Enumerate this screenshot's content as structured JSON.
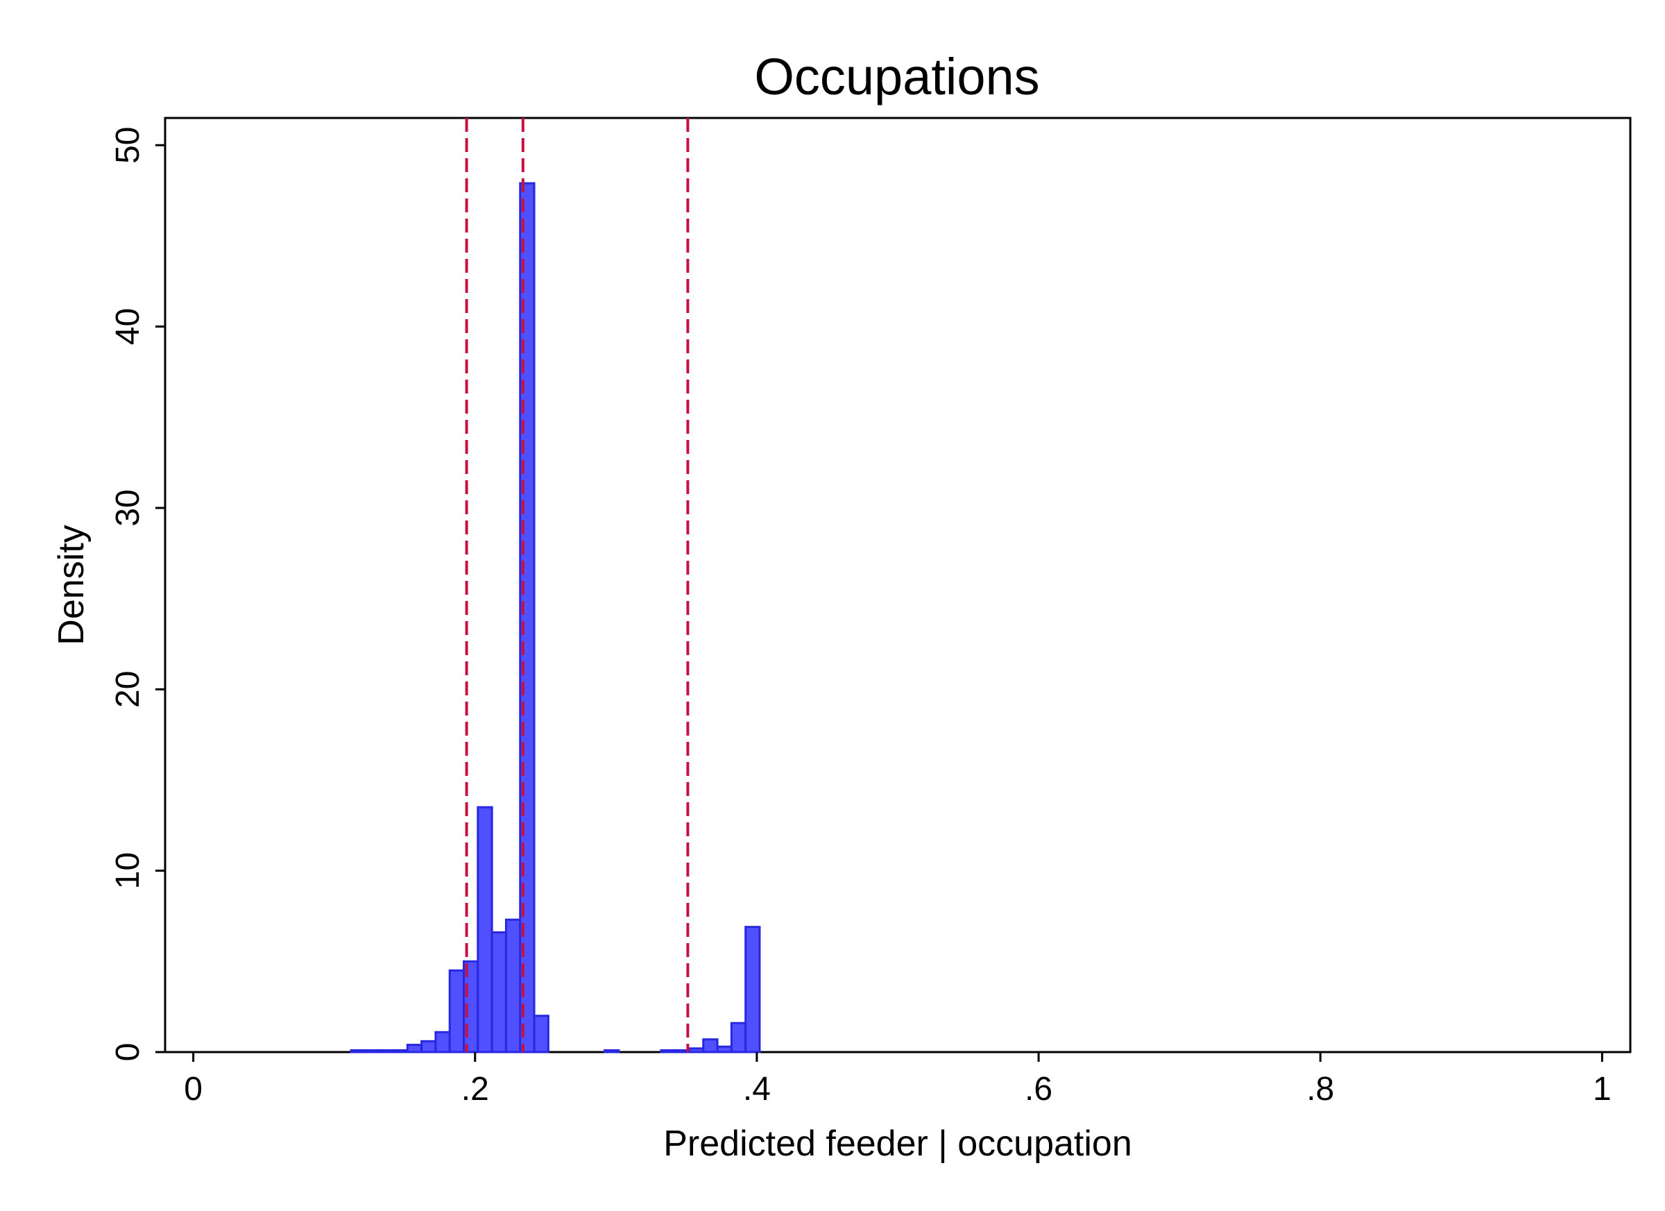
{
  "chart_data": {
    "type": "bar",
    "title": "Occupations",
    "xlabel": "Predicted feeder | occupation",
    "ylabel": "Density",
    "xlim": [
      -0.02,
      1.02
    ],
    "ylim": [
      0,
      51.5
    ],
    "x_ticks": [
      0,
      0.2,
      0.4,
      0.6,
      0.8,
      1
    ],
    "x_tick_labels": [
      "0",
      ".2",
      ".4",
      ".6",
      ".8",
      "1"
    ],
    "y_ticks": [
      0,
      10,
      20,
      30,
      40,
      50
    ],
    "y_tick_labels": [
      "0",
      "10",
      "20",
      "30",
      "40",
      "50"
    ],
    "grid": false,
    "bin_width": 0.01,
    "bins": [
      {
        "start": 0.112,
        "density": 0.1
      },
      {
        "start": 0.122,
        "density": 0.1
      },
      {
        "start": 0.132,
        "density": 0.1
      },
      {
        "start": 0.142,
        "density": 0.1
      },
      {
        "start": 0.152,
        "density": 0.4
      },
      {
        "start": 0.162,
        "density": 0.6
      },
      {
        "start": 0.172,
        "density": 1.1
      },
      {
        "start": 0.182,
        "density": 4.5
      },
      {
        "start": 0.192,
        "density": 5.0
      },
      {
        "start": 0.202,
        "density": 13.5
      },
      {
        "start": 0.212,
        "density": 6.6
      },
      {
        "start": 0.222,
        "density": 7.3
      },
      {
        "start": 0.232,
        "density": 47.9
      },
      {
        "start": 0.242,
        "density": 2.0
      },
      {
        "start": 0.292,
        "density": 0.1
      },
      {
        "start": 0.332,
        "density": 0.1
      },
      {
        "start": 0.342,
        "density": 0.1
      },
      {
        "start": 0.352,
        "density": 0.2
      },
      {
        "start": 0.362,
        "density": 0.7
      },
      {
        "start": 0.372,
        "density": 0.3
      },
      {
        "start": 0.382,
        "density": 1.6
      },
      {
        "start": 0.392,
        "density": 6.9
      }
    ],
    "vlines": [
      0.194,
      0.234,
      0.351
    ],
    "colors": {
      "bar_fill": "#5050ff",
      "bar_edge": "#2828e0",
      "vline": "#c8103e",
      "axis": "#000000"
    }
  }
}
